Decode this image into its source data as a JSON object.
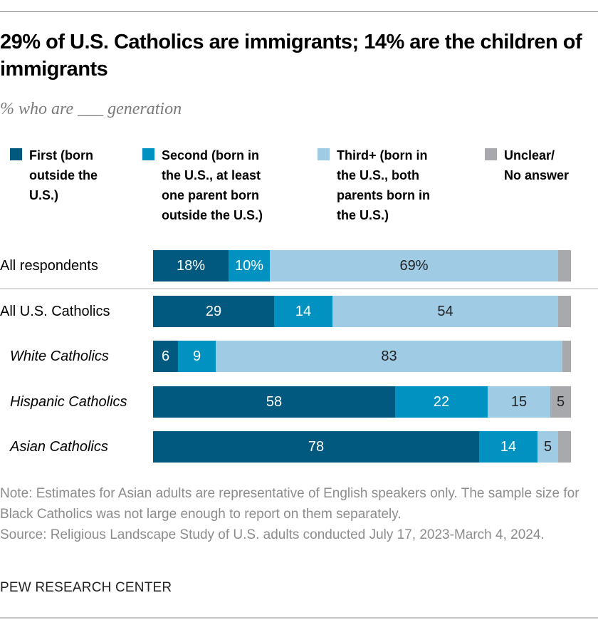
{
  "header": {
    "title": "29% of U.S. Catholics are immigrants; 14% are the children of immigrants",
    "subtitle": "% who are ___ generation"
  },
  "colors": {
    "first": "#02597f",
    "second": "#0192c1",
    "third": "#a0cbe4",
    "unclear": "#a7a9ac",
    "dark_text": "#222222",
    "light_text": "#ffffff"
  },
  "chart_data": {
    "type": "bar",
    "orientation": "horizontal",
    "stacked": true,
    "title": "29% of U.S. Catholics are immigrants; 14% are the children of immigrants",
    "subtitle": "% who are ___ generation",
    "xlabel": "",
    "ylabel": "",
    "xlim": [
      0,
      100
    ],
    "grid": false,
    "legend_position": "top",
    "categories": [
      "All respondents",
      "All U.S. Catholics",
      "White Catholics",
      "Hispanic Catholics",
      "Asian Catholics"
    ],
    "category_italic": [
      false,
      false,
      true,
      true,
      true
    ],
    "series": [
      {
        "name": "First (born outside the U.S.)",
        "key": "first",
        "values": [
          18,
          29,
          6,
          58,
          78
        ],
        "labels": [
          "18%",
          "29",
          "6",
          "58",
          "78"
        ]
      },
      {
        "name": "Second (born in the U.S., at least one parent born outside the U.S.)",
        "key": "second",
        "values": [
          10,
          14,
          9,
          22,
          14
        ],
        "labels": [
          "10%",
          "14",
          "9",
          "22",
          "14"
        ]
      },
      {
        "name": "Third+ (born in the U.S., both parents born in the U.S.)",
        "key": "third",
        "values": [
          69,
          54,
          83,
          15,
          5
        ],
        "labels": [
          "69%",
          "54",
          "83",
          "15",
          "5"
        ]
      },
      {
        "name": "Unclear/ No answer",
        "key": "unclear",
        "values": [
          3,
          3,
          2,
          5,
          3
        ],
        "labels": [
          "",
          "",
          "",
          "5",
          ""
        ]
      }
    ]
  },
  "legend": [
    {
      "key": "first",
      "label": "First (born\noutside the\nU.S.)"
    },
    {
      "key": "second",
      "label": "Second (born in\nthe U.S., at least\none parent born\noutside the U.S.)"
    },
    {
      "key": "third",
      "label": "Third+ (born in\nthe U.S., both\nparents born in\nthe U.S.)"
    },
    {
      "key": "unclear",
      "label": "Unclear/\nNo answer"
    }
  ],
  "note": "Note: Estimates for Asian adults are representative of English speakers only. The sample size for Black Catholics was not large enough to report on them separately.",
  "source": "Source: Religious Landscape Study of U.S. adults conducted July 17, 2023-March 4, 2024.",
  "footer": "PEW RESEARCH CENTER"
}
